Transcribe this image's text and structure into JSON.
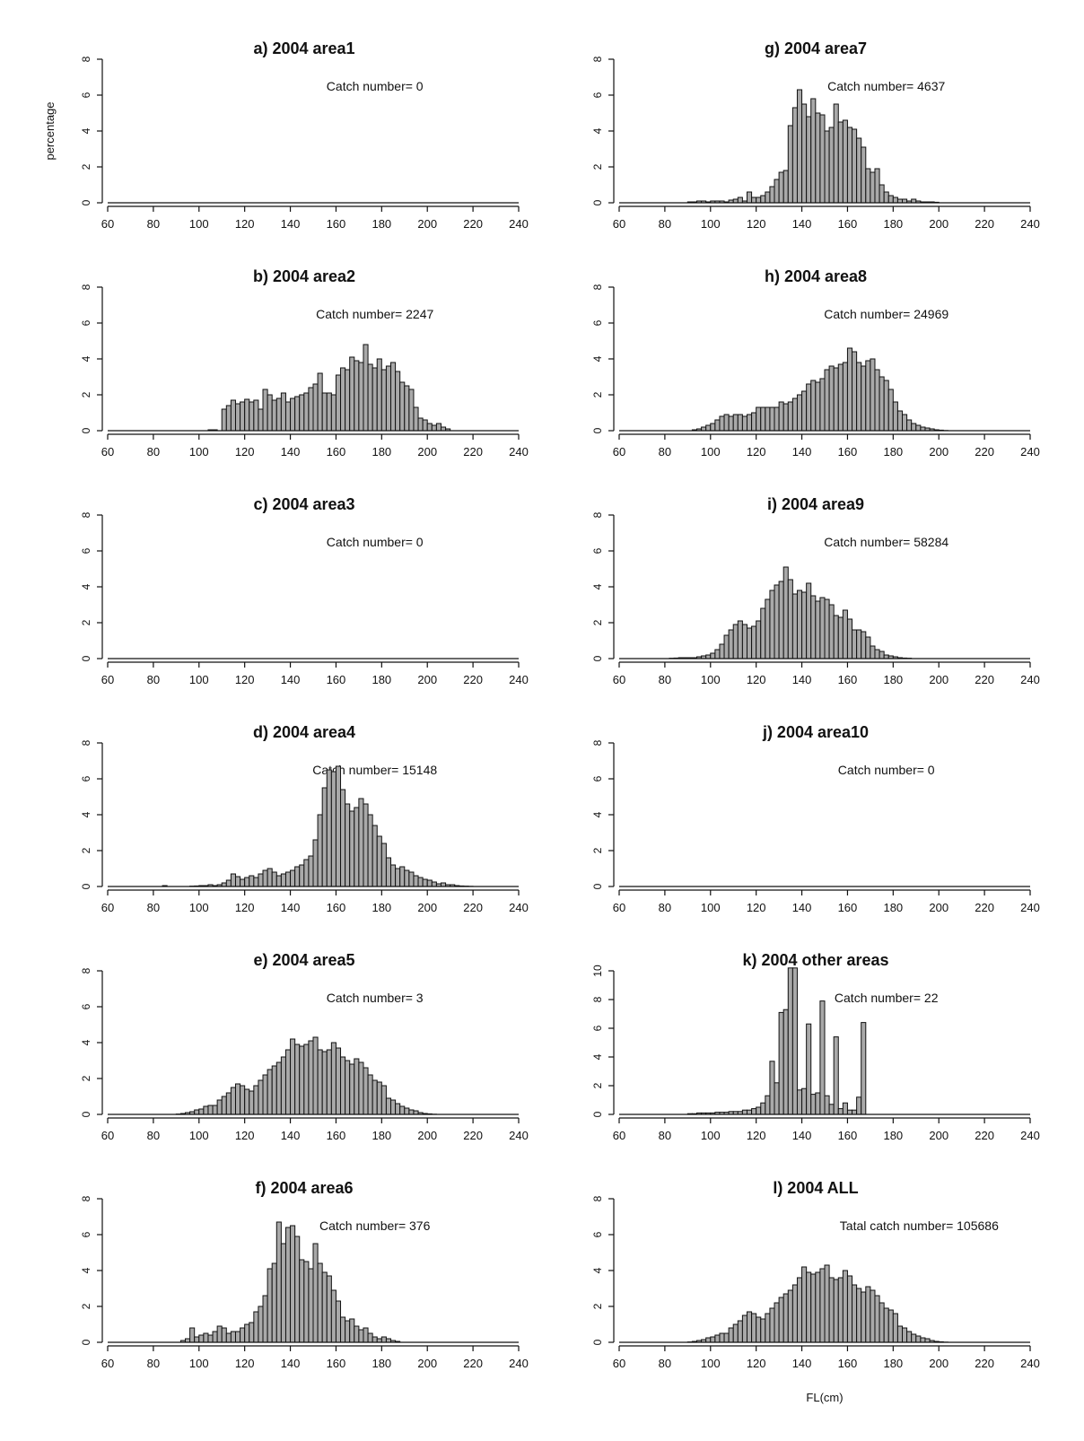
{
  "chart_data": [
    {
      "type": "bar",
      "title": "a) 2004 area1",
      "annotation": "Catch number= 0",
      "ylabel": "percentage",
      "xlabel": "",
      "x_ticks": [
        "60",
        "80",
        "100",
        "120",
        "140",
        "160",
        "180",
        "200",
        "220",
        "240"
      ],
      "y_ticks": [
        "0",
        "2",
        "4",
        "6",
        "8"
      ],
      "xlim": [
        60,
        240
      ],
      "ylim": [
        0,
        8
      ],
      "bin_start": 60,
      "bin_width": 2,
      "values": []
    },
    {
      "type": "bar",
      "title": "b) 2004 area2",
      "annotation": "Catch number= 2247",
      "xlabel": "",
      "x_ticks": [
        "60",
        "80",
        "100",
        "120",
        "140",
        "160",
        "180",
        "200",
        "220",
        "240"
      ],
      "y_ticks": [
        "0",
        "2",
        "4",
        "6",
        "8"
      ],
      "xlim": [
        60,
        240
      ],
      "ylim": [
        0,
        8
      ],
      "bin_start": 60,
      "bin_width": 2,
      "values": [
        0,
        0,
        0,
        0,
        0,
        0,
        0,
        0,
        0,
        0,
        0,
        0,
        0,
        0,
        0,
        0,
        0,
        0,
        0,
        0,
        0,
        0,
        0.05,
        0.05,
        0,
        1.2,
        1.4,
        1.7,
        1.5,
        1.6,
        1.75,
        1.6,
        1.7,
        1.2,
        2.3,
        2.0,
        1.7,
        1.8,
        2.1,
        1.6,
        1.8,
        1.9,
        2.0,
        2.1,
        2.4,
        2.6,
        3.2,
        2.1,
        2.1,
        2.0,
        3.1,
        3.5,
        3.4,
        4.1,
        3.9,
        3.8,
        4.8,
        3.7,
        3.5,
        4.0,
        3.4,
        3.6,
        3.8,
        3.3,
        2.7,
        2.5,
        2.3,
        1.3,
        0.7,
        0.6,
        0.4,
        0.3,
        0.4,
        0.2,
        0.1,
        0,
        0,
        0,
        0,
        0,
        0,
        0,
        0,
        0,
        0,
        0,
        0,
        0,
        0,
        0
      ]
    },
    {
      "type": "bar",
      "title": "c) 2004 area3",
      "annotation": "Catch number= 0",
      "xlabel": "",
      "x_ticks": [
        "60",
        "80",
        "100",
        "120",
        "140",
        "160",
        "180",
        "200",
        "220",
        "240"
      ],
      "y_ticks": [
        "0",
        "2",
        "4",
        "6",
        "8"
      ],
      "xlim": [
        60,
        240
      ],
      "ylim": [
        0,
        8
      ],
      "bin_start": 60,
      "bin_width": 2,
      "values": []
    },
    {
      "type": "bar",
      "title": "d) 2004 area4",
      "annotation": "Catch number= 15148",
      "xlabel": "",
      "x_ticks": [
        "60",
        "80",
        "100",
        "120",
        "140",
        "160",
        "180",
        "200",
        "220",
        "240"
      ],
      "y_ticks": [
        "0",
        "2",
        "4",
        "6",
        "8"
      ],
      "xlim": [
        60,
        240
      ],
      "ylim": [
        0,
        8
      ],
      "bin_start": 60,
      "bin_width": 2,
      "values": [
        0,
        0,
        0,
        0,
        0,
        0,
        0,
        0,
        0,
        0,
        0,
        0,
        0.05,
        0,
        0,
        0,
        0,
        0,
        0.02,
        0.03,
        0.05,
        0.05,
        0.1,
        0.05,
        0.1,
        0.2,
        0.35,
        0.7,
        0.55,
        0.4,
        0.5,
        0.6,
        0.5,
        0.7,
        0.9,
        1.0,
        0.8,
        0.6,
        0.7,
        0.8,
        0.9,
        1.1,
        1.2,
        1.5,
        1.7,
        2.6,
        4.0,
        5.5,
        6.5,
        6.4,
        6.7,
        5.4,
        4.6,
        4.2,
        4.4,
        4.9,
        4.6,
        4.0,
        3.4,
        2.8,
        2.4,
        1.6,
        1.2,
        1.0,
        1.1,
        0.9,
        0.8,
        0.6,
        0.5,
        0.4,
        0.35,
        0.25,
        0.15,
        0.2,
        0.1,
        0.1,
        0.05,
        0.03,
        0.02,
        0.01,
        0,
        0,
        0,
        0,
        0,
        0,
        0,
        0,
        0,
        0
      ]
    },
    {
      "type": "bar",
      "title": "e) 2004 area5",
      "annotation": "Catch number= 3",
      "xlabel": "",
      "x_ticks": [
        "60",
        "80",
        "100",
        "120",
        "140",
        "160",
        "180",
        "200",
        "220",
        "240"
      ],
      "y_ticks": [
        "0",
        "2",
        "4",
        "6",
        "8"
      ],
      "xlim": [
        60,
        240
      ],
      "ylim": [
        0,
        8
      ],
      "bin_start": 60,
      "bin_width": 2,
      "values": [
        0,
        0,
        0,
        0,
        0,
        0,
        0,
        0,
        0,
        0,
        0,
        0,
        0,
        0,
        0,
        0.02,
        0.05,
        0.1,
        0.15,
        0.25,
        0.3,
        0.45,
        0.5,
        0.5,
        0.8,
        1.0,
        1.2,
        1.5,
        1.7,
        1.6,
        1.4,
        1.3,
        1.6,
        1.9,
        2.2,
        2.5,
        2.7,
        2.9,
        3.2,
        3.6,
        4.2,
        3.9,
        3.8,
        3.9,
        4.1,
        4.3,
        3.6,
        3.5,
        3.6,
        4.0,
        3.7,
        3.2,
        3.0,
        2.8,
        3.1,
        2.9,
        2.6,
        2.2,
        1.9,
        1.8,
        1.6,
        0.9,
        0.8,
        0.6,
        0.45,
        0.35,
        0.25,
        0.2,
        0.1,
        0.05,
        0.03,
        0.01,
        0,
        0,
        0,
        0,
        0,
        0,
        0,
        0,
        0,
        0,
        0,
        0,
        0,
        0,
        0,
        0,
        0,
        0
      ]
    },
    {
      "type": "bar",
      "title": "f) 2004 area6",
      "annotation": "Catch number= 376",
      "xlabel": "",
      "x_ticks": [
        "60",
        "80",
        "100",
        "120",
        "140",
        "160",
        "180",
        "200",
        "220",
        "240"
      ],
      "y_ticks": [
        "0",
        "2",
        "4",
        "6",
        "8"
      ],
      "xlim": [
        60,
        240
      ],
      "ylim": [
        0,
        8
      ],
      "bin_start": 60,
      "bin_width": 2,
      "values": [
        0,
        0,
        0,
        0,
        0,
        0,
        0,
        0,
        0,
        0,
        0,
        0,
        0,
        0,
        0,
        0,
        0.1,
        0.2,
        0.8,
        0.3,
        0.4,
        0.5,
        0.4,
        0.6,
        0.9,
        0.8,
        0.5,
        0.6,
        0.6,
        0.8,
        1.0,
        1.1,
        1.7,
        2.0,
        2.6,
        4.1,
        4.4,
        6.7,
        5.5,
        6.4,
        6.5,
        5.9,
        4.6,
        4.5,
        4.1,
        5.5,
        4.4,
        3.9,
        3.7,
        2.9,
        2.3,
        1.4,
        1.2,
        1.3,
        0.9,
        0.7,
        0.8,
        0.5,
        0.3,
        0.2,
        0.3,
        0.2,
        0.1,
        0.05,
        0,
        0,
        0,
        0,
        0,
        0,
        0,
        0,
        0,
        0,
        0,
        0,
        0,
        0,
        0,
        0,
        0,
        0,
        0,
        0,
        0,
        0,
        0,
        0,
        0,
        0
      ]
    },
    {
      "type": "bar",
      "title": "g) 2004 area7",
      "annotation": "Catch number= 4637",
      "xlabel": "",
      "x_ticks": [
        "60",
        "80",
        "100",
        "120",
        "140",
        "160",
        "180",
        "200",
        "220",
        "240"
      ],
      "y_ticks": [
        "0",
        "2",
        "4",
        "6",
        "8"
      ],
      "xlim": [
        60,
        240
      ],
      "ylim": [
        0,
        8
      ],
      "bin_start": 60,
      "bin_width": 2,
      "values": [
        0,
        0,
        0,
        0,
        0,
        0,
        0,
        0,
        0,
        0,
        0,
        0,
        0,
        0,
        0,
        0.05,
        0.05,
        0.1,
        0.1,
        0.05,
        0.1,
        0.1,
        0.1,
        0.05,
        0.15,
        0.2,
        0.3,
        0.1,
        0.6,
        0.3,
        0.3,
        0.4,
        0.6,
        0.9,
        1.3,
        1.7,
        1.8,
        4.3,
        5.3,
        6.3,
        5.5,
        4.8,
        5.8,
        5.0,
        4.9,
        4.0,
        4.2,
        5.5,
        4.5,
        4.6,
        4.2,
        4.1,
        3.6,
        3.1,
        1.9,
        1.7,
        1.9,
        1.0,
        0.6,
        0.4,
        0.3,
        0.2,
        0.2,
        0.1,
        0.2,
        0.1,
        0.05,
        0.05,
        0.05,
        0.03,
        0,
        0,
        0,
        0,
        0,
        0,
        0,
        0,
        0,
        0,
        0,
        0,
        0,
        0,
        0,
        0,
        0,
        0,
        0,
        0
      ]
    },
    {
      "type": "bar",
      "title": "h) 2004 area8",
      "annotation": "Catch number= 24969",
      "xlabel": "",
      "x_ticks": [
        "60",
        "80",
        "100",
        "120",
        "140",
        "160",
        "180",
        "200",
        "220",
        "240"
      ],
      "y_ticks": [
        "0",
        "2",
        "4",
        "6",
        "8"
      ],
      "xlim": [
        60,
        240
      ],
      "ylim": [
        0,
        8
      ],
      "bin_start": 60,
      "bin_width": 2,
      "values": [
        0,
        0,
        0,
        0,
        0,
        0,
        0,
        0,
        0,
        0,
        0,
        0,
        0,
        0,
        0,
        0,
        0.05,
        0.1,
        0.2,
        0.3,
        0.4,
        0.6,
        0.8,
        0.9,
        0.8,
        0.9,
        0.9,
        0.8,
        0.9,
        1.0,
        1.3,
        1.3,
        1.3,
        1.3,
        1.3,
        1.6,
        1.5,
        1.6,
        1.8,
        2.0,
        2.2,
        2.6,
        2.8,
        2.7,
        2.9,
        3.4,
        3.6,
        3.5,
        3.7,
        3.8,
        4.6,
        4.4,
        3.8,
        3.6,
        3.9,
        4.0,
        3.4,
        3.0,
        2.8,
        2.3,
        1.6,
        1.1,
        0.9,
        0.6,
        0.4,
        0.3,
        0.2,
        0.15,
        0.1,
        0.05,
        0.03,
        0.01,
        0,
        0,
        0,
        0,
        0,
        0,
        0,
        0,
        0,
        0,
        0,
        0,
        0,
        0,
        0,
        0,
        0,
        0
      ]
    },
    {
      "type": "bar",
      "title": "i) 2004 area9",
      "annotation": "Catch number= 58284",
      "xlabel": "",
      "x_ticks": [
        "60",
        "80",
        "100",
        "120",
        "140",
        "160",
        "180",
        "200",
        "220",
        "240"
      ],
      "y_ticks": [
        "0",
        "2",
        "4",
        "6",
        "8"
      ],
      "xlim": [
        60,
        240
      ],
      "ylim": [
        0,
        8
      ],
      "bin_start": 60,
      "bin_width": 2,
      "values": [
        0,
        0,
        0,
        0,
        0,
        0,
        0,
        0,
        0,
        0,
        0,
        0.02,
        0.03,
        0.05,
        0.05,
        0.05,
        0.05,
        0.1,
        0.15,
        0.2,
        0.3,
        0.5,
        0.8,
        1.3,
        1.6,
        1.9,
        2.1,
        1.9,
        1.7,
        1.8,
        2.1,
        2.8,
        3.3,
        3.8,
        4.1,
        4.3,
        5.1,
        4.4,
        3.6,
        3.8,
        3.7,
        4.2,
        3.5,
        3.2,
        3.4,
        3.3,
        3.0,
        2.4,
        2.3,
        2.7,
        2.2,
        1.6,
        1.6,
        1.5,
        1.2,
        0.7,
        0.5,
        0.4,
        0.2,
        0.15,
        0.1,
        0.05,
        0.03,
        0.02,
        0,
        0,
        0,
        0,
        0,
        0,
        0,
        0,
        0,
        0,
        0,
        0,
        0,
        0,
        0,
        0,
        0,
        0,
        0,
        0,
        0,
        0,
        0,
        0,
        0,
        0
      ]
    },
    {
      "type": "bar",
      "title": "j) 2004 area10",
      "annotation": "Catch number= 0",
      "xlabel": "",
      "x_ticks": [
        "60",
        "80",
        "100",
        "120",
        "140",
        "160",
        "180",
        "200",
        "220",
        "240"
      ],
      "y_ticks": [
        "0",
        "2",
        "4",
        "6",
        "8"
      ],
      "xlim": [
        60,
        240
      ],
      "ylim": [
        0,
        8
      ],
      "bin_start": 60,
      "bin_width": 2,
      "values": []
    },
    {
      "type": "bar",
      "title": "k) 2004 other areas",
      "annotation": "Catch number= 22",
      "xlabel": "",
      "x_ticks": [
        "60",
        "80",
        "100",
        "120",
        "140",
        "160",
        "180",
        "200",
        "220",
        "240"
      ],
      "y_ticks": [
        "0",
        "2",
        "4",
        "6",
        "8",
        "10"
      ],
      "xlim": [
        60,
        240
      ],
      "ylim": [
        0,
        12
      ],
      "bin_start": 60,
      "bin_width": 2,
      "values": [
        0,
        0,
        0,
        0,
        0,
        0,
        0,
        0,
        0,
        0,
        0,
        0,
        0,
        0,
        0,
        0.05,
        0.05,
        0.1,
        0.1,
        0.1,
        0.1,
        0.15,
        0.15,
        0.15,
        0.2,
        0.2,
        0.2,
        0.3,
        0.3,
        0.4,
        0.5,
        0.8,
        1.3,
        3.7,
        2.2,
        7.1,
        7.3,
        11.6,
        10.8,
        1.7,
        1.8,
        6.3,
        1.4,
        1.5,
        7.9,
        1.3,
        0.7,
        5.4,
        0.4,
        0.8,
        0.3,
        0.3,
        1.2,
        6.4,
        0,
        0,
        0,
        0,
        0,
        0,
        0,
        0,
        0,
        0,
        0,
        0,
        0,
        0,
        0,
        0,
        0,
        0,
        0,
        0,
        0,
        0,
        0,
        0,
        0,
        0,
        0,
        0,
        0,
        0,
        0,
        0,
        0,
        0,
        0,
        0
      ]
    },
    {
      "type": "bar",
      "title": "l) 2004 ALL",
      "annotation": "Tatal catch number= 105686",
      "xlabel": "FL(cm)",
      "x_ticks": [
        "60",
        "80",
        "100",
        "120",
        "140",
        "160",
        "180",
        "200",
        "220",
        "240"
      ],
      "y_ticks": [
        "0",
        "2",
        "4",
        "6",
        "8"
      ],
      "xlim": [
        60,
        240
      ],
      "ylim": [
        0,
        8
      ],
      "bin_start": 60,
      "bin_width": 2,
      "values": [
        0,
        0,
        0,
        0,
        0,
        0,
        0,
        0,
        0,
        0,
        0,
        0,
        0,
        0,
        0,
        0.02,
        0.05,
        0.1,
        0.15,
        0.25,
        0.3,
        0.4,
        0.5,
        0.5,
        0.8,
        1.0,
        1.2,
        1.5,
        1.7,
        1.6,
        1.4,
        1.3,
        1.6,
        1.9,
        2.2,
        2.5,
        2.7,
        2.9,
        3.2,
        3.6,
        4.2,
        3.9,
        3.8,
        3.9,
        4.1,
        4.3,
        3.6,
        3.5,
        3.6,
        4.0,
        3.7,
        3.2,
        3.0,
        2.8,
        3.1,
        2.9,
        2.6,
        2.2,
        1.9,
        1.8,
        1.6,
        0.9,
        0.8,
        0.6,
        0.45,
        0.35,
        0.25,
        0.2,
        0.1,
        0.05,
        0.03,
        0.01,
        0,
        0,
        0,
        0,
        0,
        0,
        0,
        0,
        0,
        0,
        0,
        0,
        0,
        0,
        0,
        0,
        0,
        0
      ]
    }
  ]
}
